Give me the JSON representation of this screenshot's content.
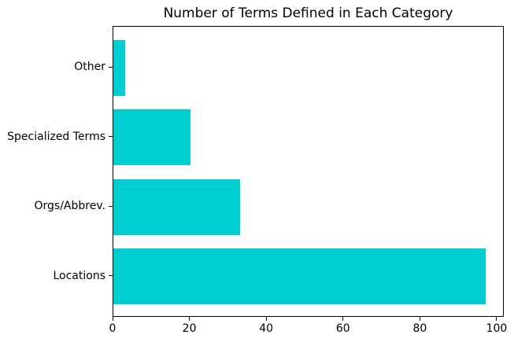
{
  "chart_data": {
    "type": "bar",
    "orientation": "horizontal",
    "title": "Number of Terms Defined in Each Category",
    "categories": [
      "Other",
      "Specialized Terms",
      "Orgs/Abbrev.",
      "Locations"
    ],
    "values": [
      3,
      20,
      33,
      97
    ],
    "xlabel": "",
    "ylabel": "",
    "xticks": [
      0,
      20,
      40,
      60,
      80,
      100
    ],
    "xlim": [
      0,
      101.85
    ],
    "bar_relative_height": 0.8,
    "grid": false,
    "legend": null,
    "bar_color": "#00CED1"
  },
  "colors": {
    "background": "#ffffff",
    "spine": "#000000",
    "text": "#000000",
    "bar": "#00CED1"
  }
}
